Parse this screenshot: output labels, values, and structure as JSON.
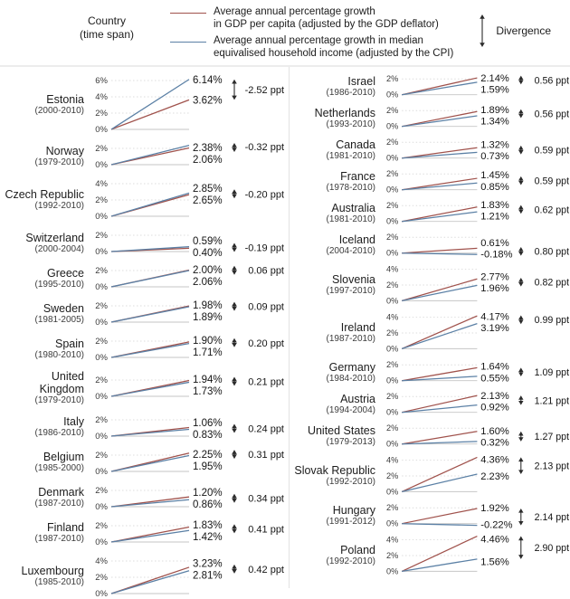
{
  "legend": {
    "country_label": "Country",
    "timespan_label": "(time span)",
    "series": [
      {
        "name": "gdp",
        "label_line1": "Average annual percentage growth",
        "label_line2": "in GDP per capita (adjusted by the GDP deflator)",
        "color": "#a0524c"
      },
      {
        "name": "income",
        "label_line1": "Average annual percentage growth in median",
        "label_line2": "equivalised household income (adjusted by the CPI)",
        "color": "#5b80a5"
      }
    ],
    "divergence_label": "Divergence"
  },
  "colors": {
    "gdp_line": "#a0524c",
    "income_line": "#5b80a5",
    "grid": "#dcdcdc",
    "baseline": "#c6c6c6",
    "arrow": "#2b2b2b",
    "divider": "#e2e2e2"
  },
  "chart_data": {
    "type": "line",
    "subtype": "slope",
    "unit": "%",
    "tick_interval": 2,
    "series_names": [
      "GDP per capita growth (red)",
      "Median equivalised household income growth (blue)"
    ],
    "columns": [
      {
        "rows": [
          {
            "country": "Estonia",
            "span": "(2000-2010)",
            "ymax": 6,
            "ticks": [
              "6%",
              "4%",
              "2%",
              "0%"
            ],
            "gdp": 3.62,
            "income": 6.14,
            "end_labels": [
              "6.14%",
              "3.62%"
            ],
            "divergence": -2.52,
            "divergence_label": "-2.52 ppt"
          },
          {
            "country": "Norway",
            "span": "(1979-2010)",
            "ymax": 2,
            "ticks": [
              "2%",
              "0%"
            ],
            "gdp": 2.06,
            "income": 2.38,
            "end_labels": [
              "2.38%",
              "2.06%"
            ],
            "divergence": -0.32,
            "divergence_label": "-0.32 ppt"
          },
          {
            "country": "Czech Republic",
            "span": "(1992-2010)",
            "ymax": 4,
            "ticks": [
              "4%",
              "2%",
              "0%"
            ],
            "gdp": 2.65,
            "income": 2.85,
            "end_labels": [
              "2.85%",
              "2.65%"
            ],
            "divergence": -0.2,
            "divergence_label": "-0.20 ppt"
          },
          {
            "country": "Switzerland",
            "span": "(2000-2004)",
            "ymax": 2,
            "ticks": [
              "2%",
              "0%"
            ],
            "gdp": 0.4,
            "income": 0.59,
            "end_labels": [
              "0.59%",
              "0.40%"
            ],
            "divergence": -0.19,
            "divergence_label": "-0.19 ppt"
          },
          {
            "country": "Greece",
            "span": "(1995-2010)",
            "ymax": 2,
            "ticks": [
              "2%",
              "0%"
            ],
            "gdp": 2.06,
            "income": 2.0,
            "end_labels": [
              "2.00%",
              "2.06%"
            ],
            "divergence": 0.06,
            "divergence_label": "0.06 ppt"
          },
          {
            "country": "Sweden",
            "span": "(1981-2005)",
            "ymax": 2,
            "ticks": [
              "2%",
              "0%"
            ],
            "gdp": 1.98,
            "income": 1.89,
            "end_labels": [
              "1.98%",
              "1.89%"
            ],
            "divergence": 0.09,
            "divergence_label": "0.09 ppt"
          },
          {
            "country": "Spain",
            "span": "(1980-2010)",
            "ymax": 2,
            "ticks": [
              "2%",
              "0%"
            ],
            "gdp": 1.9,
            "income": 1.71,
            "end_labels": [
              "1.90%",
              "1.71%"
            ],
            "divergence": 0.2,
            "divergence_label": "0.20 ppt"
          },
          {
            "country": "United Kingdom",
            "span": "(1979-2010)",
            "ymax": 2,
            "ticks": [
              "2%",
              "0%"
            ],
            "gdp": 1.94,
            "income": 1.73,
            "end_labels": [
              "1.94%",
              "1.73%"
            ],
            "divergence": 0.21,
            "divergence_label": "0.21 ppt"
          },
          {
            "country": "Italy",
            "span": "(1986-2010)",
            "ymax": 2,
            "ticks": [
              "2%",
              "0%"
            ],
            "gdp": 1.06,
            "income": 0.83,
            "end_labels": [
              "1.06%",
              "0.83%"
            ],
            "divergence": 0.24,
            "divergence_label": "0.24 ppt"
          },
          {
            "country": "Belgium",
            "span": "(1985-2000)",
            "ymax": 2,
            "ticks": [
              "2%",
              "0%"
            ],
            "gdp": 2.25,
            "income": 1.95,
            "end_labels": [
              "2.25%",
              "1.95%"
            ],
            "divergence": 0.31,
            "divergence_label": "0.31 ppt"
          },
          {
            "country": "Denmark",
            "span": "(1987-2010)",
            "ymax": 2,
            "ticks": [
              "2%",
              "0%"
            ],
            "gdp": 1.2,
            "income": 0.86,
            "end_labels": [
              "1.20%",
              "0.86%"
            ],
            "divergence": 0.34,
            "divergence_label": "0.34 ppt"
          },
          {
            "country": "Finland",
            "span": "(1987-2010)",
            "ymax": 2,
            "ticks": [
              "2%",
              "0%"
            ],
            "gdp": 1.83,
            "income": 1.42,
            "end_labels": [
              "1.83%",
              "1.42%"
            ],
            "divergence": 0.41,
            "divergence_label": "0.41 ppt"
          },
          {
            "country": "Luxembourg",
            "span": "(1985-2010)",
            "ymax": 4,
            "ticks": [
              "4%",
              "2%",
              "0%"
            ],
            "gdp": 3.23,
            "income": 2.81,
            "end_labels": [
              "3.23%",
              "2.81%"
            ],
            "divergence": 0.42,
            "divergence_label": "0.42 ppt"
          }
        ]
      },
      {
        "rows": [
          {
            "country": "Israel",
            "span": "(1986-2010)",
            "ymax": 2,
            "ticks": [
              "2%",
              "0%"
            ],
            "gdp": 2.14,
            "income": 1.59,
            "end_labels": [
              "2.14%",
              "1.59%"
            ],
            "divergence": 0.56,
            "divergence_label": "0.56 ppt"
          },
          {
            "country": "Netherlands",
            "span": "(1993-2010)",
            "ymax": 2,
            "ticks": [
              "2%",
              "0%"
            ],
            "gdp": 1.89,
            "income": 1.34,
            "end_labels": [
              "1.89%",
              "1.34%"
            ],
            "divergence": 0.56,
            "divergence_label": "0.56 ppt"
          },
          {
            "country": "Canada",
            "span": "(1981-2010)",
            "ymax": 2,
            "ticks": [
              "2%",
              "0%"
            ],
            "gdp": 1.32,
            "income": 0.73,
            "end_labels": [
              "1.32%",
              "0.73%"
            ],
            "divergence": 0.59,
            "divergence_label": "0.59 ppt"
          },
          {
            "country": "France",
            "span": "(1978-2010)",
            "ymax": 2,
            "ticks": [
              "2%",
              "0%"
            ],
            "gdp": 1.45,
            "income": 0.85,
            "end_labels": [
              "1.45%",
              "0.85%"
            ],
            "divergence": 0.59,
            "divergence_label": "0.59 ppt"
          },
          {
            "country": "Australia",
            "span": "(1981-2010)",
            "ymax": 2,
            "ticks": [
              "2%",
              "0%"
            ],
            "gdp": 1.83,
            "income": 1.21,
            "end_labels": [
              "1.83%",
              "1.21%"
            ],
            "divergence": 0.62,
            "divergence_label": "0.62 ppt"
          },
          {
            "country": "Iceland",
            "span": "(2004-2010)",
            "ymax": 2,
            "ticks": [
              "2%",
              "0%"
            ],
            "gdp": 0.61,
            "income": -0.18,
            "end_labels": [
              "0.61%",
              "-0.18%"
            ],
            "divergence": 0.8,
            "divergence_label": "0.80 ppt"
          },
          {
            "country": "Slovenia",
            "span": "(1997-2010)",
            "ymax": 4,
            "ticks": [
              "4%",
              "2%",
              "0%"
            ],
            "gdp": 2.77,
            "income": 1.96,
            "end_labels": [
              "2.77%",
              "1.96%"
            ],
            "divergence": 0.82,
            "divergence_label": "0.82 ppt"
          },
          {
            "country": "Ireland",
            "span": "(1987-2010)",
            "ymax": 4,
            "ticks": [
              "4%",
              "2%",
              "0%"
            ],
            "gdp": 4.17,
            "income": 3.19,
            "end_labels": [
              "4.17%",
              "3.19%"
            ],
            "divergence": 0.99,
            "divergence_label": "0.99 ppt"
          },
          {
            "country": "Germany",
            "span": "(1984-2010)",
            "ymax": 2,
            "ticks": [
              "2%",
              "0%"
            ],
            "gdp": 1.64,
            "income": 0.55,
            "end_labels": [
              "1.64%",
              "0.55%"
            ],
            "divergence": 1.09,
            "divergence_label": "1.09 ppt"
          },
          {
            "country": "Austria",
            "span": "(1994-2004)",
            "ymax": 2,
            "ticks": [
              "2%",
              "0%"
            ],
            "gdp": 2.13,
            "income": 0.92,
            "end_labels": [
              "2.13%",
              "0.92%"
            ],
            "divergence": 1.21,
            "divergence_label": "1.21 ppt"
          },
          {
            "country": "United States",
            "span": "(1979-2013)",
            "ymax": 2,
            "ticks": [
              "2%",
              "0%"
            ],
            "gdp": 1.6,
            "income": 0.32,
            "end_labels": [
              "1.60%",
              "0.32%"
            ],
            "divergence": 1.27,
            "divergence_label": "1.27 ppt"
          },
          {
            "country": "Slovak Republic",
            "span": "(1992-2010)",
            "ymax": 4,
            "ticks": [
              "4%",
              "2%",
              "0%"
            ],
            "gdp": 4.36,
            "income": 2.23,
            "end_labels": [
              "4.36%",
              "2.23%"
            ],
            "divergence": 2.13,
            "divergence_label": "2.13 ppt"
          },
          {
            "country": "Hungary",
            "span": "(1991-2012)",
            "ymax": 2,
            "ticks": [
              "2%",
              "0%"
            ],
            "gdp": 1.92,
            "income": -0.22,
            "end_labels": [
              "1.92%",
              "-0.22%"
            ],
            "divergence": 2.14,
            "divergence_label": "2.14 ppt"
          },
          {
            "country": "Poland",
            "span": "(1992-2010)",
            "ymax": 4,
            "ticks": [
              "4%",
              "2%",
              "0%"
            ],
            "gdp": 4.46,
            "income": 1.56,
            "end_labels": [
              "4.46%",
              "1.56%"
            ],
            "divergence": 2.9,
            "divergence_label": "2.90 ppt"
          }
        ]
      }
    ]
  }
}
